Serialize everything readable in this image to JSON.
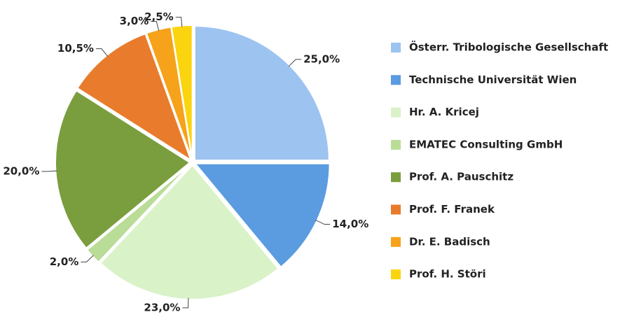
{
  "chart_data": {
    "type": "pie",
    "categories": [
      "Österr. Tribologische Gesellschaft",
      "Technische Universität Wien",
      "Hr. A. Kricej",
      "EMATEC Consulting GmbH",
      "Prof. A. Pauschitz",
      "Prof. F. Franek",
      "Dr. E. Badisch",
      "Prof. H. Störi"
    ],
    "values": [
      25,
      14,
      23,
      2,
      20,
      10.5,
      3,
      2.5
    ],
    "value_labels": [
      "25,0%",
      "14,0%",
      "23,0%",
      "2,0%",
      "20,0%",
      "10,5%",
      "3,0%",
      "2,5%"
    ],
    "colors": [
      "#9dc3f0",
      "#5b9be0",
      "#d9f2c8",
      "#b9dc97",
      "#7a9e3e",
      "#e87c2c",
      "#f6a21a",
      "#fad40f"
    ],
    "legend": "right"
  }
}
